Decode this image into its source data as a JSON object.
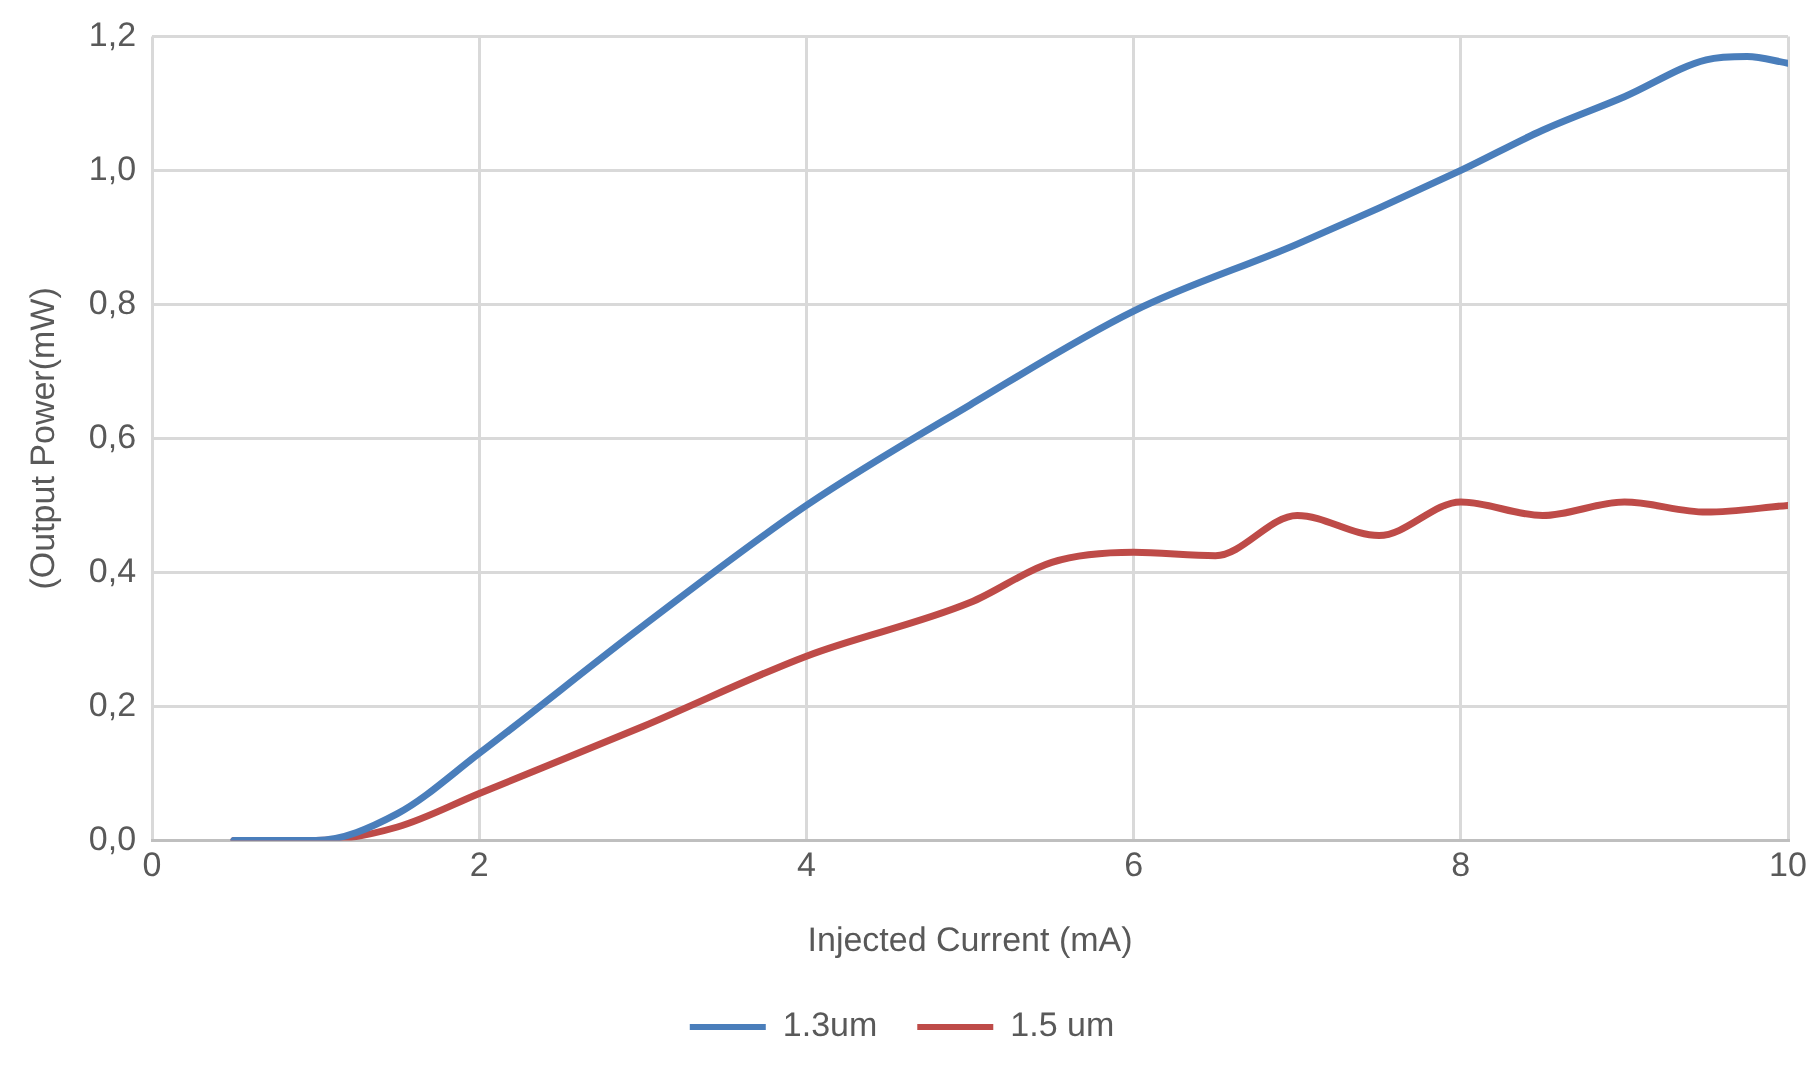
{
  "chart_data": {
    "type": "line",
    "xlabel": "Injected Current (mA)",
    "ylabel": "(Output Power(mW)",
    "xlim": [
      0,
      10
    ],
    "xticks": [
      0,
      2,
      4,
      6,
      8,
      10
    ],
    "ylim": [
      0,
      1.2
    ],
    "yticks": [
      {
        "value": 0,
        "label": "0,0"
      },
      {
        "value": 0.2,
        "label": "0,2"
      },
      {
        "value": 0.4,
        "label": "0,4"
      },
      {
        "value": 0.6,
        "label": "0,6"
      },
      {
        "value": 0.8,
        "label": "0,8"
      },
      {
        "value": 1.0,
        "label": "1,0"
      },
      {
        "value": 1.2,
        "label": "1,2"
      }
    ],
    "grid": true,
    "legend": "bottom",
    "marker": "none",
    "line_style": "solid",
    "series": [
      {
        "name": "1.3um",
        "color": "#4a7ebb",
        "x": [
          0.5,
          1,
          1.5,
          2,
          3,
          4,
          5,
          6,
          7,
          8,
          8.5,
          9,
          9.5,
          9.75,
          10
        ],
        "values": [
          0,
          0,
          0.04,
          0.13,
          0.32,
          0.5,
          0.65,
          0.79,
          0.89,
          1.0,
          1.06,
          1.11,
          1.165,
          1.17,
          1.16
        ]
      },
      {
        "name": "1.5 um",
        "color": "#be4b48",
        "x": [
          0.5,
          1,
          1.5,
          2,
          3,
          4,
          5,
          5.5,
          6,
          6.5,
          7,
          7.5,
          8,
          8.5,
          9,
          9.5,
          10
        ],
        "values": [
          0,
          0,
          0.02,
          0.07,
          0.17,
          0.275,
          0.355,
          0.415,
          0.43,
          0.425,
          0.485,
          0.455,
          0.505,
          0.485,
          0.505,
          0.49,
          0.5
        ]
      }
    ]
  }
}
